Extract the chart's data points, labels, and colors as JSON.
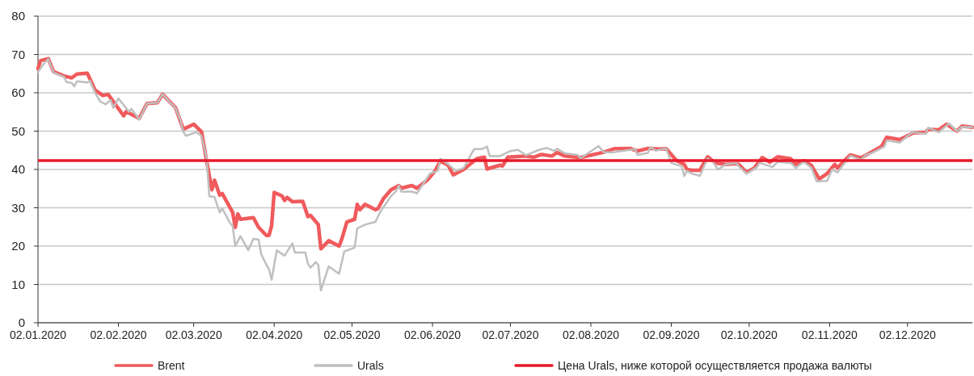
{
  "chart_data": {
    "type": "line",
    "xlim": [
      "2020-01-02",
      "2020-12-27"
    ],
    "ylim": [
      0,
      80
    ],
    "xticks": [
      {
        "value": "2020-01-02",
        "label": "02.01.2020"
      },
      {
        "value": "2020-02-02",
        "label": "02.02.2020"
      },
      {
        "value": "2020-03-02",
        "label": "02.03.2020"
      },
      {
        "value": "2020-04-02",
        "label": "02.04.2020"
      },
      {
        "value": "2020-05-02",
        "label": "02.05.2020"
      },
      {
        "value": "2020-06-02",
        "label": "02.06.2020"
      },
      {
        "value": "2020-07-02",
        "label": "02.07.2020"
      },
      {
        "value": "2020-08-02",
        "label": "02.08.2020"
      },
      {
        "value": "2020-09-02",
        "label": "02.09.2020"
      },
      {
        "value": "2020-10-02",
        "label": "02.10.2020"
      },
      {
        "value": "2020-11-02",
        "label": "02.11.2020"
      },
      {
        "value": "2020-12-02",
        "label": "02.12.2020"
      }
    ],
    "yticks": [
      0,
      10,
      20,
      30,
      40,
      50,
      60,
      70,
      80
    ],
    "grid": "y",
    "legend": "bottom",
    "marker": "none",
    "line_style": "solid",
    "ref_lines": [
      {
        "axis": "y",
        "value": 42.3,
        "label": "Цена Urals, ниже которой осуществляется продажа валюты",
        "color": "#e8192c"
      }
    ],
    "series": [
      {
        "name": "Brent",
        "color": "#f05a5c",
        "x": [
          "2020-01-02",
          "2020-01-03",
          "2020-01-06",
          "2020-01-08",
          "2020-01-12",
          "2020-01-15",
          "2020-01-17",
          "2020-01-21",
          "2020-01-24",
          "2020-01-27",
          "2020-01-29",
          "2020-02-04",
          "2020-02-05",
          "2020-02-10",
          "2020-02-13",
          "2020-02-17",
          "2020-02-19",
          "2020-02-24",
          "2020-02-27",
          "2020-03-02",
          "2020-03-05",
          "2020-03-07",
          "2020-03-09",
          "2020-03-10",
          "2020-03-12",
          "2020-03-13",
          "2020-03-17",
          "2020-03-18",
          "2020-03-19",
          "2020-03-20",
          "2020-03-25",
          "2020-03-27",
          "2020-03-30",
          "2020-03-31",
          "2020-04-01",
          "2020-04-02",
          "2020-04-05",
          "2020-04-06",
          "2020-04-07",
          "2020-04-09",
          "2020-04-13",
          "2020-04-15",
          "2020-04-16",
          "2020-04-19",
          "2020-04-20",
          "2020-04-23",
          "2020-04-27",
          "2020-04-28",
          "2020-04-30",
          "2020-05-03",
          "2020-05-04",
          "2020-05-05",
          "2020-05-07",
          "2020-05-11",
          "2020-05-12",
          "2020-05-14",
          "2020-05-17",
          "2020-05-20",
          "2020-05-21",
          "2020-05-25",
          "2020-05-27",
          "2020-05-31",
          "2020-06-03",
          "2020-06-05",
          "2020-06-08",
          "2020-06-10",
          "2020-06-14",
          "2020-06-16",
          "2020-06-19",
          "2020-06-22",
          "2020-06-23",
          "2020-06-28",
          "2020-06-29",
          "2020-07-01",
          "2020-07-08",
          "2020-07-11",
          "2020-07-14",
          "2020-07-18",
          "2020-07-20",
          "2020-07-23",
          "2020-07-29",
          "2020-08-07",
          "2020-08-11",
          "2020-08-17",
          "2020-08-20",
          "2020-08-24",
          "2020-08-29",
          "2020-08-31",
          "2020-09-04",
          "2020-09-07",
          "2020-09-08",
          "2020-09-10",
          "2020-09-13",
          "2020-09-16",
          "2020-09-19",
          "2020-09-23",
          "2020-09-27",
          "2020-09-28",
          "2020-10-01",
          "2020-10-04",
          "2020-10-07",
          "2020-10-10",
          "2020-10-13",
          "2020-10-18",
          "2020-10-20",
          "2020-10-23",
          "2020-10-26",
          "2020-10-29",
          "2020-11-01",
          "2020-11-04",
          "2020-11-05",
          "2020-11-10",
          "2020-11-14",
          "2020-11-18",
          "2020-11-22",
          "2020-11-24",
          "2020-11-29",
          "2020-12-03",
          "2020-12-04",
          "2020-12-09",
          "2020-12-10",
          "2020-12-14",
          "2020-12-17",
          "2020-12-21",
          "2020-12-23",
          "2020-12-27"
        ],
        "values": [
          66.3,
          68.4,
          68.9,
          65.5,
          64.4,
          63.9,
          64.9,
          65.1,
          60.7,
          59.3,
          59.6,
          54.0,
          55.1,
          53.3,
          57.2,
          57.4,
          59.6,
          56.1,
          50.5,
          51.8,
          49.8,
          42.1,
          34.7,
          37.2,
          33.3,
          33.7,
          28.8,
          24.9,
          28.4,
          27.0,
          27.4,
          24.9,
          22.8,
          22.8,
          25.3,
          34.0,
          33.1,
          31.9,
          32.7,
          31.6,
          31.7,
          27.7,
          28.0,
          25.6,
          19.3,
          21.4,
          20.0,
          21.7,
          26.3,
          27.0,
          30.9,
          29.5,
          30.9,
          29.5,
          29.8,
          32.3,
          34.7,
          35.8,
          35.1,
          35.8,
          35.1,
          37.2,
          39.6,
          42.2,
          41.1,
          38.6,
          40.0,
          41.1,
          42.8,
          43.2,
          40.1,
          41.1,
          40.9,
          43.2,
          43.5,
          43.2,
          43.9,
          43.5,
          44.4,
          43.5,
          43.1,
          44.5,
          45.4,
          45.5,
          44.8,
          45.5,
          45.3,
          45.4,
          42.3,
          41.3,
          40.0,
          39.8,
          39.8,
          43.3,
          41.7,
          41.3,
          41.5,
          41.3,
          39.2,
          40.4,
          43.1,
          41.9,
          43.3,
          42.8,
          41.3,
          42.3,
          41.0,
          37.5,
          38.9,
          41.3,
          40.4,
          43.8,
          43.0,
          44.5,
          46.0,
          48.4,
          47.8,
          49.1,
          49.5,
          49.7,
          50.5,
          50.3,
          51.8,
          50.0,
          51.3,
          51.0
        ]
      },
      {
        "name": "Urals",
        "color": "#bfbfbf",
        "x": [
          "2020-01-02",
          "2020-01-04",
          "2020-01-06",
          "2020-01-08",
          "2020-01-12",
          "2020-01-13",
          "2020-01-15",
          "2020-01-16",
          "2020-01-17",
          "2020-01-21",
          "2020-01-22",
          "2020-01-24",
          "2020-01-26",
          "2020-01-28",
          "2020-01-30",
          "2020-01-31",
          "2020-02-02",
          "2020-02-06",
          "2020-02-07",
          "2020-02-10",
          "2020-02-13",
          "2020-02-17",
          "2020-02-19",
          "2020-02-24",
          "2020-02-26",
          "2020-02-27",
          "2020-02-28",
          "2020-03-03",
          "2020-03-05",
          "2020-03-07",
          "2020-03-08",
          "2020-03-10",
          "2020-03-12",
          "2020-03-13",
          "2020-03-16",
          "2020-03-17",
          "2020-03-18",
          "2020-03-20",
          "2020-03-23",
          "2020-03-25",
          "2020-03-27",
          "2020-03-28",
          "2020-03-30",
          "2020-03-31",
          "2020-04-01",
          "2020-04-03",
          "2020-04-06",
          "2020-04-09",
          "2020-04-10",
          "2020-04-14",
          "2020-04-15",
          "2020-04-16",
          "2020-04-18",
          "2020-04-19",
          "2020-04-20",
          "2020-04-23",
          "2020-04-27",
          "2020-04-29",
          "2020-05-03",
          "2020-05-04",
          "2020-05-07",
          "2020-05-11",
          "2020-05-13",
          "2020-05-17",
          "2020-05-19",
          "2020-05-20",
          "2020-05-21",
          "2020-05-25",
          "2020-05-27",
          "2020-06-01",
          "2020-06-04",
          "2020-06-05",
          "2020-06-08",
          "2020-06-11",
          "2020-06-14",
          "2020-06-18",
          "2020-06-21",
          "2020-06-23",
          "2020-06-24",
          "2020-06-28",
          "2020-07-02",
          "2020-07-05",
          "2020-07-08",
          "2020-07-13",
          "2020-07-16",
          "2020-07-19",
          "2020-07-20",
          "2020-07-23",
          "2020-07-28",
          "2020-07-29",
          "2020-08-05",
          "2020-08-07",
          "2020-08-11",
          "2020-08-19",
          "2020-08-20",
          "2020-08-24",
          "2020-08-25",
          "2020-08-27",
          "2020-08-31",
          "2020-09-02",
          "2020-09-06",
          "2020-09-07",
          "2020-09-08",
          "2020-09-10",
          "2020-09-13",
          "2020-09-16",
          "2020-09-18",
          "2020-09-20",
          "2020-09-23",
          "2020-09-27",
          "2020-09-28",
          "2020-10-01",
          "2020-10-05",
          "2020-10-06",
          "2020-10-08",
          "2020-10-11",
          "2020-10-13",
          "2020-10-18",
          "2020-10-20",
          "2020-10-23",
          "2020-10-26",
          "2020-10-28",
          "2020-11-01",
          "2020-11-03",
          "2020-11-05",
          "2020-11-10",
          "2020-11-14",
          "2020-11-16",
          "2020-11-18",
          "2020-11-23",
          "2020-11-24",
          "2020-11-29",
          "2020-12-02",
          "2020-12-04",
          "2020-12-09",
          "2020-12-10",
          "2020-12-14",
          "2020-12-18",
          "2020-12-21",
          "2020-12-23",
          "2020-12-27"
        ],
        "values": [
          65.4,
          67.4,
          68.8,
          65.3,
          64.2,
          62.8,
          62.6,
          61.7,
          63.0,
          62.7,
          63.2,
          60.0,
          57.7,
          57.0,
          58.1,
          56.1,
          58.5,
          55.1,
          55.8,
          53.0,
          57.2,
          57.4,
          59.6,
          56.0,
          52.6,
          49.8,
          48.8,
          49.7,
          48.8,
          42.8,
          33.0,
          32.8,
          28.8,
          29.8,
          26.0,
          25.3,
          20.0,
          22.6,
          18.9,
          21.9,
          21.7,
          17.9,
          15.1,
          14.0,
          11.2,
          18.9,
          17.5,
          20.7,
          18.3,
          18.3,
          15.4,
          14.4,
          15.8,
          15.1,
          8.4,
          14.7,
          12.8,
          18.6,
          19.6,
          24.6,
          25.6,
          26.3,
          29.1,
          33.0,
          34.4,
          35.8,
          34.2,
          34.2,
          33.8,
          38.9,
          39.6,
          42.8,
          41.4,
          39.6,
          40.4,
          45.3,
          45.3,
          46.0,
          43.5,
          43.5,
          44.8,
          45.1,
          43.7,
          45.1,
          45.6,
          44.8,
          45.4,
          44.2,
          43.8,
          42.9,
          46.1,
          44.5,
          44.5,
          45.3,
          43.8,
          44.3,
          45.9,
          44.9,
          45.5,
          41.7,
          40.8,
          38.3,
          39.6,
          38.9,
          38.3,
          42.9,
          42.0,
          40.0,
          41.3,
          41.7,
          40.8,
          38.9,
          40.6,
          41.7,
          41.3,
          40.6,
          42.0,
          41.7,
          40.4,
          42.0,
          40.4,
          36.9,
          37.0,
          40.0,
          39.2,
          43.6,
          42.5,
          43.8,
          44.2,
          45.9,
          47.6,
          47.0,
          48.7,
          49.7,
          49.3,
          50.9,
          49.7,
          52.0,
          50.0,
          51.1,
          51.0
        ]
      }
    ]
  }
}
